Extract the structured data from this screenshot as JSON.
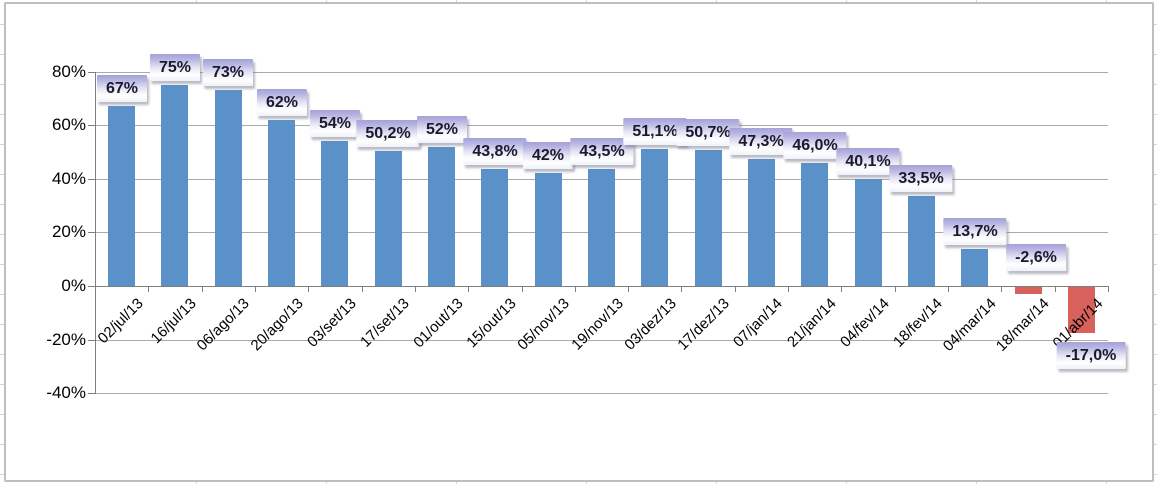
{
  "chart_data": {
    "type": "bar",
    "categories": [
      "02/jul/13",
      "16/jul/13",
      "06/ago/13",
      "20/ago/13",
      "03/set/13",
      "17/set/13",
      "01/out/13",
      "15/out/13",
      "05/nov/13",
      "19/nov/13",
      "03/dez/13",
      "17/dez/13",
      "07/jan/14",
      "21/jan/14",
      "04/fev/14",
      "18/fev/14",
      "04/mar/14",
      "18/mar/14",
      "01/abr/14"
    ],
    "values": [
      67,
      75,
      73,
      62,
      54,
      50.2,
      52,
      43.8,
      42,
      43.5,
      51.1,
      50.7,
      47.3,
      46.0,
      40.1,
      33.5,
      13.7,
      -2.6,
      -17.0
    ],
    "value_labels": [
      "67%",
      "75%",
      "73%",
      "62%",
      "54%",
      "50,2%",
      "52%",
      "43,8%",
      "42%",
      "43,5%",
      "51,1%",
      "50,7%",
      "47,3%",
      "46,0%",
      "40,1%",
      "33,5%",
      "13,7%",
      "-2,6%",
      "-17,0%"
    ],
    "label_placement": [
      "above-bar",
      "above-bar",
      "above-bar",
      "above-bar",
      "above-bar",
      "above-bar",
      "above-bar",
      "above-bar",
      "above-bar",
      "above-bar",
      "above-bar",
      "above-bar",
      "above-bar",
      "above-bar",
      "above-bar",
      "above-bar",
      "above-bar",
      "above-axis",
      "below-bar"
    ],
    "title": "",
    "xlabel": "",
    "ylabel": "",
    "y_axis": {
      "ticks": [
        "80%",
        "60%",
        "40%",
        "20%",
        "0%",
        "-20%",
        "-40%"
      ],
      "values": [
        80,
        60,
        40,
        20,
        0,
        -20,
        -40
      ],
      "min": -40,
      "max": 80
    },
    "grid": true,
    "legend": "none",
    "colors": {
      "bar_positive": "#5b91c9",
      "bar_negative": "#d9615c",
      "value_label_gradient_top": "#a5a3d6",
      "value_label_text": "#1a1930",
      "gridline": "#aaaaaa",
      "axis_line": "#7f7f7f"
    }
  }
}
